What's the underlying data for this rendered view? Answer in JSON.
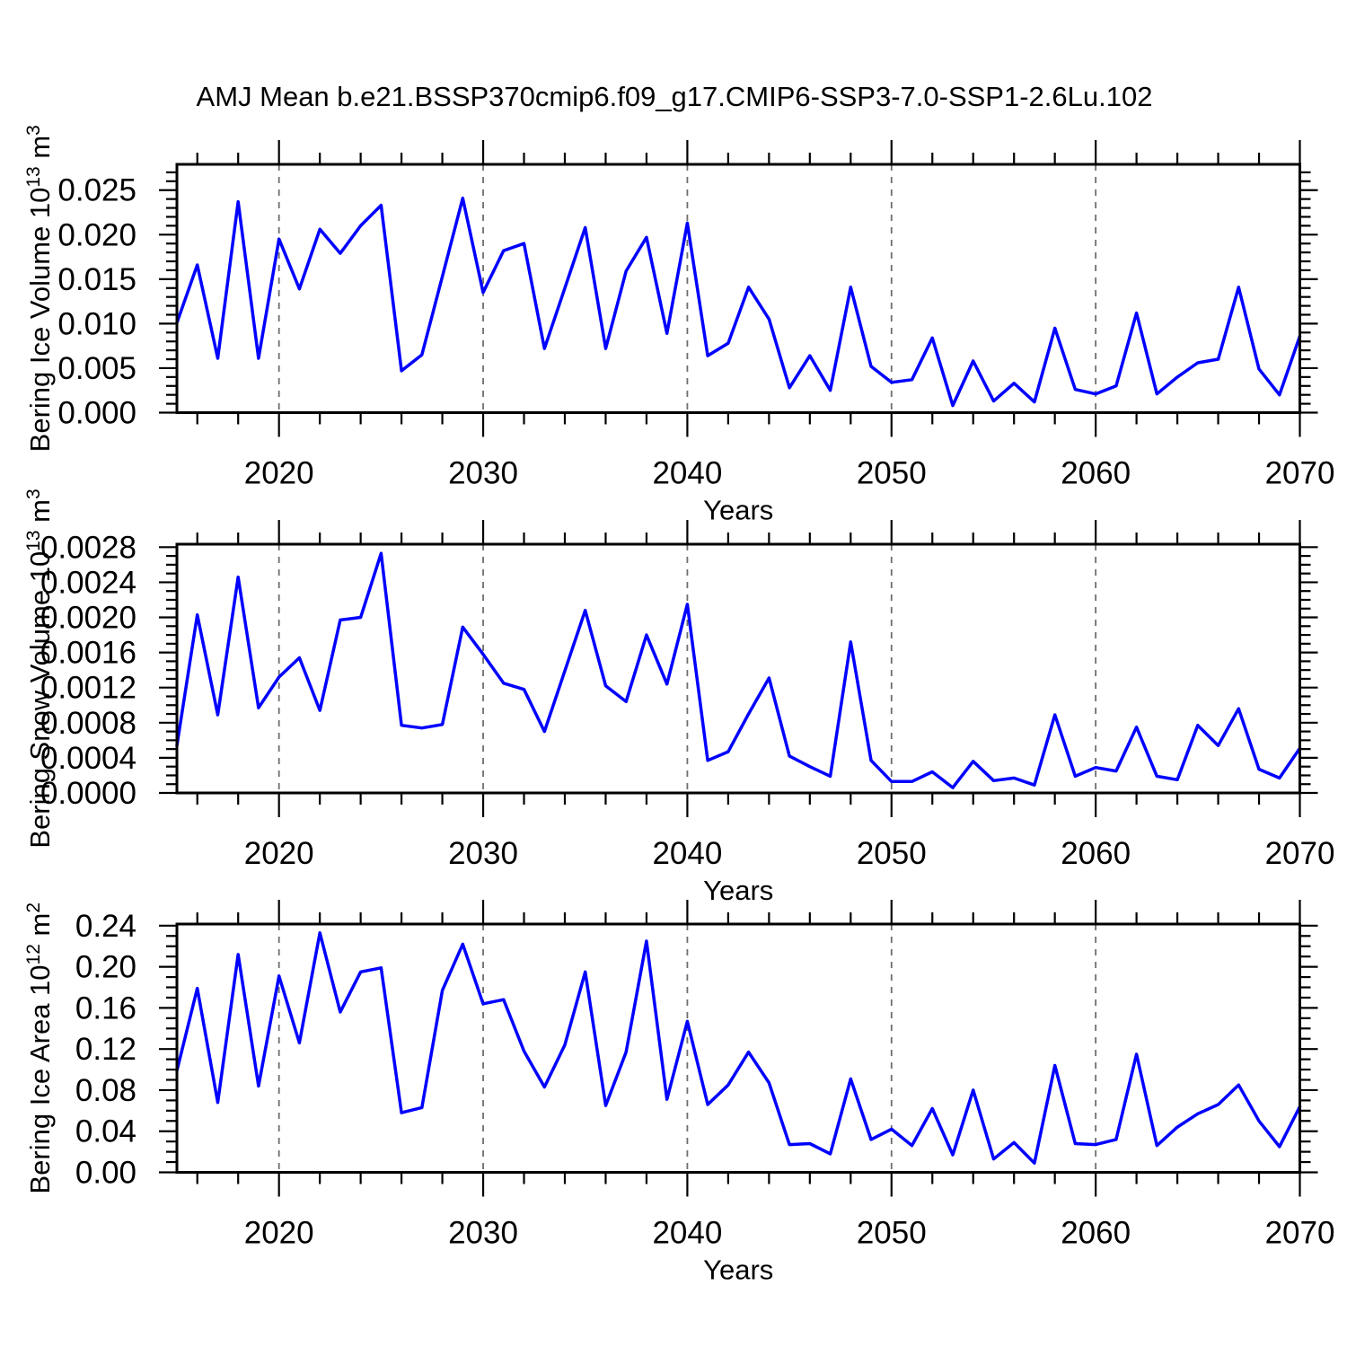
{
  "title": "AMJ Mean b.e21.BSSP370cmip6.f09_g17.CMIP6-SSP3-7.0-SSP1-2.6Lu.102",
  "colors": {
    "line": "#0000ff",
    "axis": "#000000",
    "grid": "#6e6e6e",
    "background": "#ffffff"
  },
  "x_axis": {
    "label": "Years",
    "tick_labels": [
      "2020",
      "2030",
      "2040",
      "2050",
      "2060",
      "2070"
    ],
    "tick_values": [
      2020,
      2030,
      2040,
      2050,
      2060,
      2070
    ],
    "minor_step": 2,
    "grid_years": [
      2020,
      2030,
      2040,
      2050,
      2060
    ],
    "xlim": [
      2015,
      2070
    ]
  },
  "chart_data": [
    {
      "type": "line",
      "name": "bering-ice-volume",
      "ylabel": "Bering Ice Volume 10^13 m^3",
      "ylabel_parts": [
        {
          "t": "Bering Ice Volume 10",
          "sup": false
        },
        {
          "t": "13",
          "sup": true
        },
        {
          "t": " m",
          "sup": false
        },
        {
          "t": "3",
          "sup": true
        }
      ],
      "ytick_labels": [
        "0.000",
        "0.005",
        "0.010",
        "0.015",
        "0.020",
        "0.025"
      ],
      "ymajor_step": 0.005,
      "yminor_step": 0.001,
      "ylim": [
        0,
        0.0279
      ],
      "xlim": [
        2015,
        2070
      ],
      "x": [
        2015,
        2016,
        2017,
        2018,
        2019,
        2020,
        2021,
        2022,
        2023,
        2024,
        2025,
        2026,
        2027,
        2028,
        2029,
        2030,
        2031,
        2032,
        2033,
        2034,
        2035,
        2036,
        2037,
        2038,
        2039,
        2040,
        2041,
        2042,
        2043,
        2044,
        2045,
        2046,
        2047,
        2048,
        2049,
        2050,
        2051,
        2052,
        2053,
        2054,
        2055,
        2056,
        2057,
        2058,
        2059,
        2060,
        2061,
        2062,
        2063,
        2064,
        2065,
        2066,
        2067,
        2068,
        2069,
        2070
      ],
      "values": [
        0.0101,
        0.0166,
        0.0061,
        0.0237,
        0.0061,
        0.0195,
        0.0139,
        0.0206,
        0.0179,
        0.021,
        0.0233,
        0.0047,
        0.0065,
        0.0153,
        0.0241,
        0.0135,
        0.0182,
        0.019,
        0.0072,
        0.014,
        0.0208,
        0.0072,
        0.0159,
        0.0197,
        0.0089,
        0.0213,
        0.0064,
        0.0078,
        0.0141,
        0.0105,
        0.0028,
        0.0064,
        0.0025,
        0.0141,
        0.0052,
        0.0034,
        0.0037,
        0.0084,
        0.0008,
        0.0058,
        0.0013,
        0.0033,
        0.0012,
        0.0095,
        0.0026,
        0.0021,
        0.003,
        0.0112,
        0.0021,
        0.004,
        0.0056,
        0.006,
        0.0141,
        0.0049,
        0.002,
        0.0086
      ]
    },
    {
      "type": "line",
      "name": "bering-snow-volume",
      "ylabel": "Bering Snow Volume 10^13 m^3",
      "ylabel_parts": [
        {
          "t": "Bering Snow Volume 10",
          "sup": false
        },
        {
          "t": "13",
          "sup": true
        },
        {
          "t": " m",
          "sup": false
        },
        {
          "t": "3",
          "sup": true
        }
      ],
      "ytick_labels": [
        "0.0000",
        "0.0004",
        "0.0008",
        "0.0012",
        "0.0016",
        "0.0020",
        "0.0024",
        "0.0028"
      ],
      "ymajor_step": 0.0004,
      "yminor_step": 0.0001,
      "ylim": [
        0,
        0.002834
      ],
      "xlim": [
        2015,
        2070
      ],
      "x": [
        2015,
        2016,
        2017,
        2018,
        2019,
        2020,
        2021,
        2022,
        2023,
        2024,
        2025,
        2026,
        2027,
        2028,
        2029,
        2030,
        2031,
        2032,
        2033,
        2034,
        2035,
        2036,
        2037,
        2038,
        2039,
        2040,
        2041,
        2042,
        2043,
        2044,
        2045,
        2046,
        2047,
        2048,
        2049,
        2050,
        2051,
        2052,
        2053,
        2054,
        2055,
        2056,
        2057,
        2058,
        2059,
        2060,
        2061,
        2062,
        2063,
        2064,
        2065,
        2066,
        2067,
        2068,
        2069,
        2070
      ],
      "values": [
        0.00054,
        0.00203,
        0.00089,
        0.00246,
        0.00097,
        0.00132,
        0.00154,
        0.00094,
        0.00197,
        0.002,
        0.00273,
        0.00077,
        0.00074,
        0.00078,
        0.00189,
        0.00158,
        0.00125,
        0.00118,
        0.0007,
        0.00139,
        0.00208,
        0.00122,
        0.00104,
        0.0018,
        0.00124,
        0.00215,
        0.00037,
        0.00047,
        0.0009,
        0.00131,
        0.00042,
        0.0003,
        0.00019,
        0.00172,
        0.00037,
        0.00013,
        0.00013,
        0.00024,
        6e-05,
        0.00036,
        0.00014,
        0.00017,
        9e-05,
        0.00089,
        0.00019,
        0.00029,
        0.00025,
        0.00075,
        0.00019,
        0.00015,
        0.00077,
        0.00054,
        0.00096,
        0.00027,
        0.00017,
        0.00051
      ]
    },
    {
      "type": "line",
      "name": "bering-ice-area",
      "ylabel": "Bering Ice Area 10^12 m^2",
      "ylabel_parts": [
        {
          "t": "Bering Ice Area 10",
          "sup": false
        },
        {
          "t": "12",
          "sup": true
        },
        {
          "t": " m",
          "sup": false
        },
        {
          "t": "2",
          "sup": true
        }
      ],
      "ytick_labels": [
        "0.00",
        "0.04",
        "0.08",
        "0.12",
        "0.16",
        "0.20",
        "0.24"
      ],
      "ymajor_step": 0.04,
      "yminor_step": 0.01,
      "ylim": [
        0,
        0.2416
      ],
      "xlim": [
        2015,
        2070
      ],
      "x": [
        2015,
        2016,
        2017,
        2018,
        2019,
        2020,
        2021,
        2022,
        2023,
        2024,
        2025,
        2026,
        2027,
        2028,
        2029,
        2030,
        2031,
        2032,
        2033,
        2034,
        2035,
        2036,
        2037,
        2038,
        2039,
        2040,
        2041,
        2042,
        2043,
        2044,
        2045,
        2046,
        2047,
        2048,
        2049,
        2050,
        2051,
        2052,
        2053,
        2054,
        2055,
        2056,
        2057,
        2058,
        2059,
        2060,
        2061,
        2062,
        2063,
        2064,
        2065,
        2066,
        2067,
        2068,
        2069,
        2070
      ],
      "values": [
        0.099,
        0.179,
        0.068,
        0.212,
        0.084,
        0.191,
        0.126,
        0.233,
        0.156,
        0.195,
        0.199,
        0.058,
        0.063,
        0.177,
        0.222,
        0.164,
        0.168,
        0.118,
        0.083,
        0.124,
        0.195,
        0.065,
        0.117,
        0.225,
        0.071,
        0.147,
        0.066,
        0.085,
        0.117,
        0.087,
        0.027,
        0.028,
        0.018,
        0.091,
        0.032,
        0.042,
        0.026,
        0.062,
        0.017,
        0.08,
        0.013,
        0.029,
        0.009,
        0.104,
        0.028,
        0.027,
        0.032,
        0.115,
        0.026,
        0.044,
        0.057,
        0.066,
        0.085,
        0.05,
        0.025,
        0.064
      ]
    }
  ]
}
